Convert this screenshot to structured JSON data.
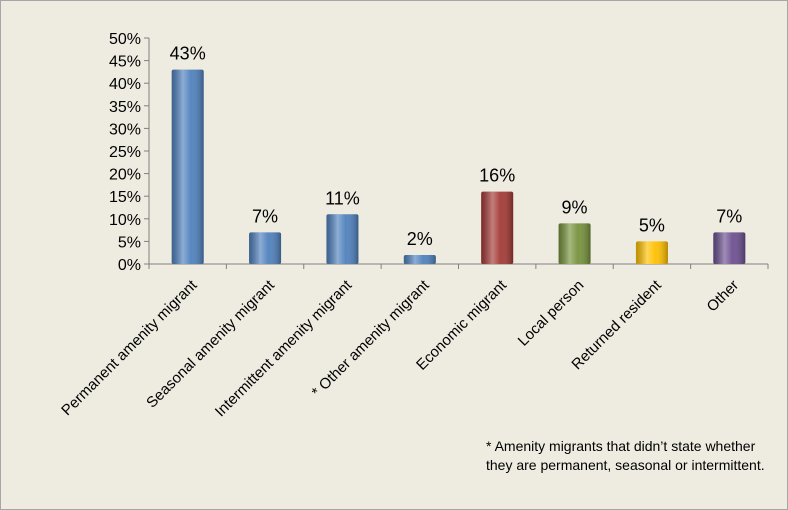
{
  "chart_data": {
    "type": "bar",
    "categories": [
      "Permanent amenity migrant",
      "Seasonal amenity migrant",
      "Intermittent amenity migrant",
      "* Other amenity migrant",
      "Economic migrant",
      "Local person",
      "Returned resident",
      "Other"
    ],
    "values": [
      43,
      7,
      11,
      2,
      16,
      9,
      5,
      7
    ],
    "data_labels": [
      "43%",
      "7%",
      "11%",
      "2%",
      "16%",
      "9%",
      "5%",
      "7%"
    ],
    "colors": [
      "#4f81bd",
      "#4f81bd",
      "#4f81bd",
      "#4f81bd",
      "#a33a36",
      "#76923c",
      "#ffc000",
      "#6c4f8f"
    ],
    "y_ticks": [
      "0%",
      "5%",
      "10%",
      "15%",
      "20%",
      "25%",
      "30%",
      "35%",
      "40%",
      "45%",
      "50%"
    ],
    "ylim": [
      0,
      50
    ],
    "title": "",
    "xlabel": "",
    "ylabel": "",
    "grid": false,
    "legend": "none"
  },
  "footnote": "* Amenity migrants that didn’t state whether they are permanent, seasonal or intermittent."
}
